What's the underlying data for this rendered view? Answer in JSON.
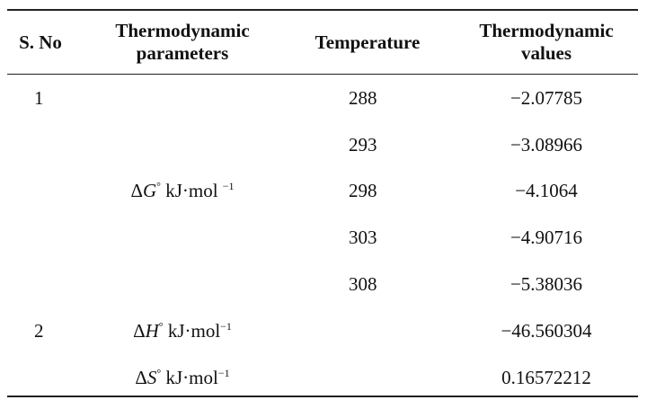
{
  "headers": {
    "sno": "S. No",
    "param_line1": "Thermodynamic",
    "param_line2": "parameters",
    "temperature": "Temperature",
    "values_line1": "Thermodynamic",
    "values_line2": "values"
  },
  "rows": [
    {
      "sno": "1",
      "temperature": "288",
      "value": "−2.07785"
    },
    {
      "sno": "",
      "temperature": "293",
      "value": "−3.08966"
    },
    {
      "sno": "",
      "temperature": "298",
      "value": "−4.1064"
    },
    {
      "sno": "",
      "temperature": "303",
      "value": "−4.90716"
    },
    {
      "sno": "",
      "temperature": "308",
      "value": "−5.38036"
    },
    {
      "sno": "2",
      "temperature": "",
      "value": "−46.560304"
    },
    {
      "sno": "",
      "temperature": "",
      "value": "0.16572212"
    }
  ],
  "params": {
    "dG": {
      "delta": "Δ",
      "symbol": "G",
      "sup": "°",
      "unit": " kJ·mol ",
      "unit_sup": "−1"
    },
    "dH": {
      "delta": "Δ",
      "symbol": "H",
      "sup": "°",
      "unit": " kJ·mol",
      "unit_sup": "−1"
    },
    "dS": {
      "delta": "Δ",
      "symbol": "S",
      "sup": "°",
      "unit": " kJ·mol",
      "unit_sup": "−1"
    }
  }
}
